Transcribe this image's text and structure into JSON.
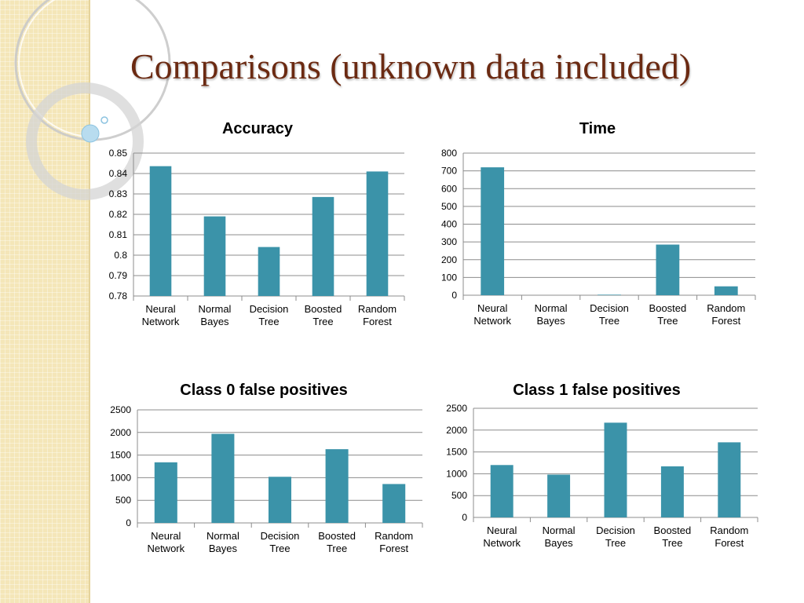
{
  "slide": {
    "title": "Comparisons (unknown data included)"
  },
  "colors": {
    "bar": "#3b93a9",
    "title": "#6b2a12",
    "band": "#f4e6b8"
  },
  "chart_data": [
    {
      "type": "bar",
      "title": "Accuracy",
      "categories": [
        [
          "Neural",
          "Network"
        ],
        [
          "Normal",
          "Bayes"
        ],
        [
          "Decision",
          "Tree"
        ],
        [
          "Boosted",
          "Tree"
        ],
        [
          "Random",
          "Forest"
        ]
      ],
      "values": [
        0.8436,
        0.819,
        0.804,
        0.8285,
        0.841
      ],
      "ylim": [
        0.78,
        0.85
      ],
      "yticks": [
        "0.78",
        "0.79",
        "0.8",
        "0.81",
        "0.82",
        "0.83",
        "0.84",
        "0.85"
      ],
      "xlabel": "",
      "ylabel": "",
      "grid": true
    },
    {
      "type": "bar",
      "title": "Time",
      "categories": [
        [
          "Neural",
          "Network"
        ],
        [
          "Normal",
          "Bayes"
        ],
        [
          "Decision",
          "Tree"
        ],
        [
          "Boosted",
          "Tree"
        ],
        [
          "Random",
          "Forest"
        ]
      ],
      "values": [
        720,
        0,
        3,
        285,
        50
      ],
      "ylim": [
        0,
        800
      ],
      "yticks": [
        "0",
        "100",
        "200",
        "300",
        "400",
        "500",
        "600",
        "700",
        "800"
      ],
      "xlabel": "",
      "ylabel": "",
      "grid": true
    },
    {
      "type": "bar",
      "title": "Class 0 false positives",
      "categories": [
        [
          "Neural",
          "Network"
        ],
        [
          "Normal",
          "Bayes"
        ],
        [
          "Decision",
          "Tree"
        ],
        [
          "Boosted",
          "Tree"
        ],
        [
          "Random",
          "Forest"
        ]
      ],
      "values": [
        1340,
        1970,
        1020,
        1630,
        860
      ],
      "ylim": [
        0,
        2500
      ],
      "yticks": [
        "0",
        "500",
        "1000",
        "1500",
        "2000",
        "2500"
      ],
      "xlabel": "",
      "ylabel": "",
      "grid": true
    },
    {
      "type": "bar",
      "title": "Class 1 false positives",
      "categories": [
        [
          "Neural",
          "Network"
        ],
        [
          "Normal",
          "Bayes"
        ],
        [
          "Decision",
          "Tree"
        ],
        [
          "Boosted",
          "Tree"
        ],
        [
          "Random",
          "Forest"
        ]
      ],
      "values": [
        1200,
        980,
        2170,
        1170,
        1720
      ],
      "ylim": [
        0,
        2500
      ],
      "yticks": [
        "0",
        "500",
        "1000",
        "1500",
        "2000",
        "2500"
      ],
      "xlabel": "",
      "ylabel": "",
      "grid": true
    }
  ]
}
